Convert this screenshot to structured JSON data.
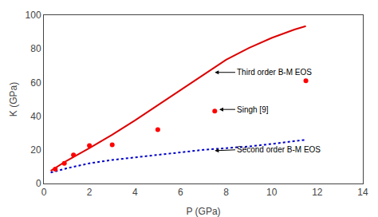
{
  "chart_data": {
    "type": "line",
    "xlabel": "P (GPa)",
    "ylabel": "K (GPa)",
    "xlim": [
      0,
      14
    ],
    "ylim": [
      0,
      100
    ],
    "xticks": [
      0,
      2,
      4,
      6,
      8,
      10,
      12,
      14
    ],
    "yticks": [
      0,
      20,
      40,
      60,
      80,
      100
    ],
    "grid": false,
    "series": [
      {
        "type": "line",
        "color": "#dd0000",
        "line_style": "solid",
        "x": [
          0.3,
          1.0,
          2.0,
          3.0,
          4.0,
          5.0,
          6.0,
          7.0,
          8.0,
          9.0,
          10.0,
          11.0,
          11.5
        ],
        "values": [
          7.5,
          13.5,
          21.0,
          29.0,
          37.5,
          46.5,
          55.5,
          64.5,
          73.5,
          80.5,
          86.5,
          91.5,
          93.5
        ]
      },
      {
        "type": "line",
        "color": "#0000cc",
        "line_style": "dotted",
        "x": [
          0.3,
          1.0,
          2.0,
          3.0,
          4.0,
          5.0,
          6.0,
          7.0,
          8.0,
          9.0,
          10.0,
          11.0,
          11.5
        ],
        "values": [
          6.5,
          9.0,
          12.0,
          14.0,
          15.5,
          17.0,
          18.5,
          20.0,
          21.0,
          22.0,
          23.5,
          25.0,
          26.0
        ]
      },
      {
        "type": "scatter",
        "color": "#ff0000",
        "marker": "circle",
        "x": [
          0.5,
          0.9,
          1.3,
          2.0,
          3.0,
          5.0,
          7.5,
          11.5
        ],
        "values": [
          8.5,
          12.0,
          17.0,
          22.5,
          23.0,
          32.0,
          43.0,
          61.0
        ]
      }
    ],
    "annotations": [
      {
        "text": "Third order B-M EOS",
        "x": 8.4,
        "y": 66.0,
        "arrow_x": 7.5,
        "arrow_y": 66.0
      },
      {
        "text": "Singh [9]",
        "x": 8.4,
        "y": 44.0,
        "arrow_x": 7.7,
        "arrow_y": 44.0
      },
      {
        "text": "Second order B-M EOS",
        "x": 8.4,
        "y": 20.0,
        "arrow_x": 7.5,
        "arrow_y": 19.5
      }
    ]
  }
}
